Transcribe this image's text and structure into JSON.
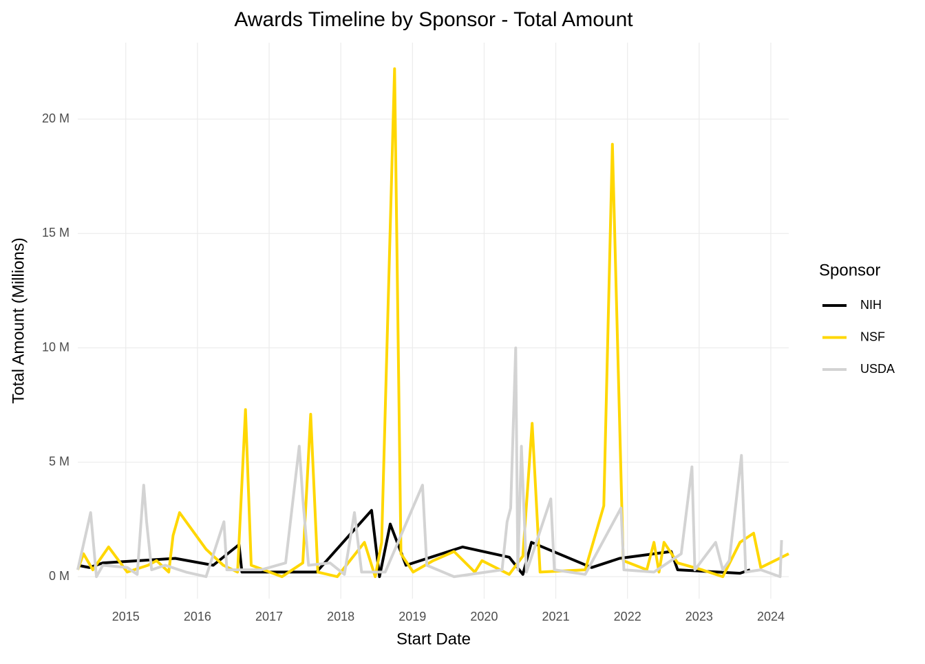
{
  "chart_data": {
    "type": "line",
    "title": "Awards Timeline by Sponsor - Total Amount",
    "x_label": "Start Date",
    "y_label": "Total Amount (Millions)",
    "legend_title": "Sponsor",
    "legend_position": "right",
    "grid": true,
    "xlim": [
      2014.33,
      2024.25
    ],
    "xticks": [
      2015,
      2016,
      2017,
      2018,
      2019,
      2020,
      2021,
      2022,
      2023,
      2024
    ],
    "ylim": [
      -0.96,
      23.34
    ],
    "yticks": [
      {
        "value": 0,
        "label": "0 M"
      },
      {
        "value": 5,
        "label": "5 M"
      },
      {
        "value": 10,
        "label": "10 M"
      },
      {
        "value": 15,
        "label": "15 M"
      },
      {
        "value": 20,
        "label": "20 M"
      }
    ],
    "series": [
      {
        "name": "NIH",
        "color": "#000000",
        "x": [
          2014.33,
          2014.49,
          2014.68,
          2015.69,
          2016.22,
          2016.58,
          2016.62,
          2017.28,
          2017.66,
          2018.43,
          2018.54,
          2018.69,
          2018.91,
          2019.7,
          2020.35,
          2020.54,
          2020.66,
          2021.5,
          2021.89,
          2022.61,
          2022.7,
          2023.57,
          2023.71
        ],
        "values": [
          0.5,
          0.4,
          0.6,
          0.8,
          0.5,
          1.4,
          0.2,
          0.2,
          0.2,
          2.9,
          0,
          2.3,
          0.5,
          1.3,
          0.85,
          0.1,
          1.5,
          0.4,
          0.8,
          1.1,
          0.3,
          0.15,
          0.3
        ]
      },
      {
        "name": "NSF",
        "color": "#FFD700",
        "x": [
          2014.33,
          2014.41,
          2014.54,
          2014.76,
          2015.02,
          2015.31,
          2015.43,
          2015.6,
          2015.66,
          2015.75,
          2016.12,
          2016.36,
          2016.56,
          2016.67,
          2016.75,
          2017.18,
          2017.47,
          2017.58,
          2017.68,
          2017.95,
          2018.33,
          2018.48,
          2018.57,
          2018.75,
          2018.84,
          2019.01,
          2019.29,
          2019.58,
          2019.87,
          2019.97,
          2020.35,
          2020.54,
          2020.67,
          2020.78,
          2021.41,
          2021.67,
          2021.79,
          2021.94,
          2022.27,
          2022.37,
          2022.44,
          2022.51,
          2022.7,
          2023.04,
          2023.33,
          2023.57,
          2023.76,
          2023.86,
          2024.25
        ],
        "values": [
          0.3,
          1.0,
          0.3,
          1.3,
          0.2,
          0.5,
          0.7,
          0.2,
          1.8,
          2.8,
          1.2,
          0.5,
          0.2,
          7.3,
          0.5,
          0.0,
          0.6,
          7.1,
          0.2,
          0.0,
          1.5,
          0.0,
          1.5,
          22.2,
          1.0,
          0.2,
          0.7,
          1.1,
          0.2,
          0.7,
          0.1,
          0.9,
          6.7,
          0.2,
          0.3,
          3.1,
          18.9,
          0.7,
          0.3,
          1.5,
          0.2,
          1.5,
          0.6,
          0.3,
          0.0,
          1.5,
          1.9,
          0.4,
          1.0
        ]
      },
      {
        "name": "USDA",
        "color": "#D3D3D3",
        "x": [
          2014.33,
          2014.51,
          2014.59,
          2014.68,
          2015.02,
          2015.16,
          2015.25,
          2015.29,
          2015.36,
          2015.55,
          2015.84,
          2016.12,
          2016.37,
          2016.41,
          2016.89,
          2017.23,
          2017.42,
          2017.47,
          2017.55,
          2017.85,
          2018.05,
          2018.19,
          2018.29,
          2018.62,
          2019.14,
          2019.2,
          2019.58,
          2020.25,
          2020.32,
          2020.37,
          2020.44,
          2020.47,
          2020.52,
          2020.59,
          2020.93,
          2020.98,
          2021.41,
          2021.91,
          2021.95,
          2022.37,
          2022.75,
          2022.9,
          2022.94,
          2023.23,
          2023.33,
          2023.42,
          2023.59,
          2023.65,
          2023.86,
          2024.13,
          2024.15
        ],
        "values": [
          0.3,
          2.8,
          0.0,
          0.5,
          0.4,
          0.1,
          4.0,
          2.4,
          0.3,
          0.5,
          0.2,
          0.0,
          2.4,
          0.3,
          0.3,
          0.6,
          5.7,
          3.4,
          0.5,
          0.6,
          0.1,
          2.8,
          0.2,
          0.2,
          4.0,
          0.5,
          0.0,
          0.3,
          2.4,
          3.0,
          10.0,
          0.3,
          5.7,
          0.2,
          3.4,
          0.3,
          0.1,
          3.0,
          0.3,
          0.2,
          1.0,
          4.8,
          0.3,
          1.5,
          0.3,
          0.7,
          5.3,
          0.2,
          0.3,
          0.0,
          1.6
        ]
      }
    ]
  }
}
